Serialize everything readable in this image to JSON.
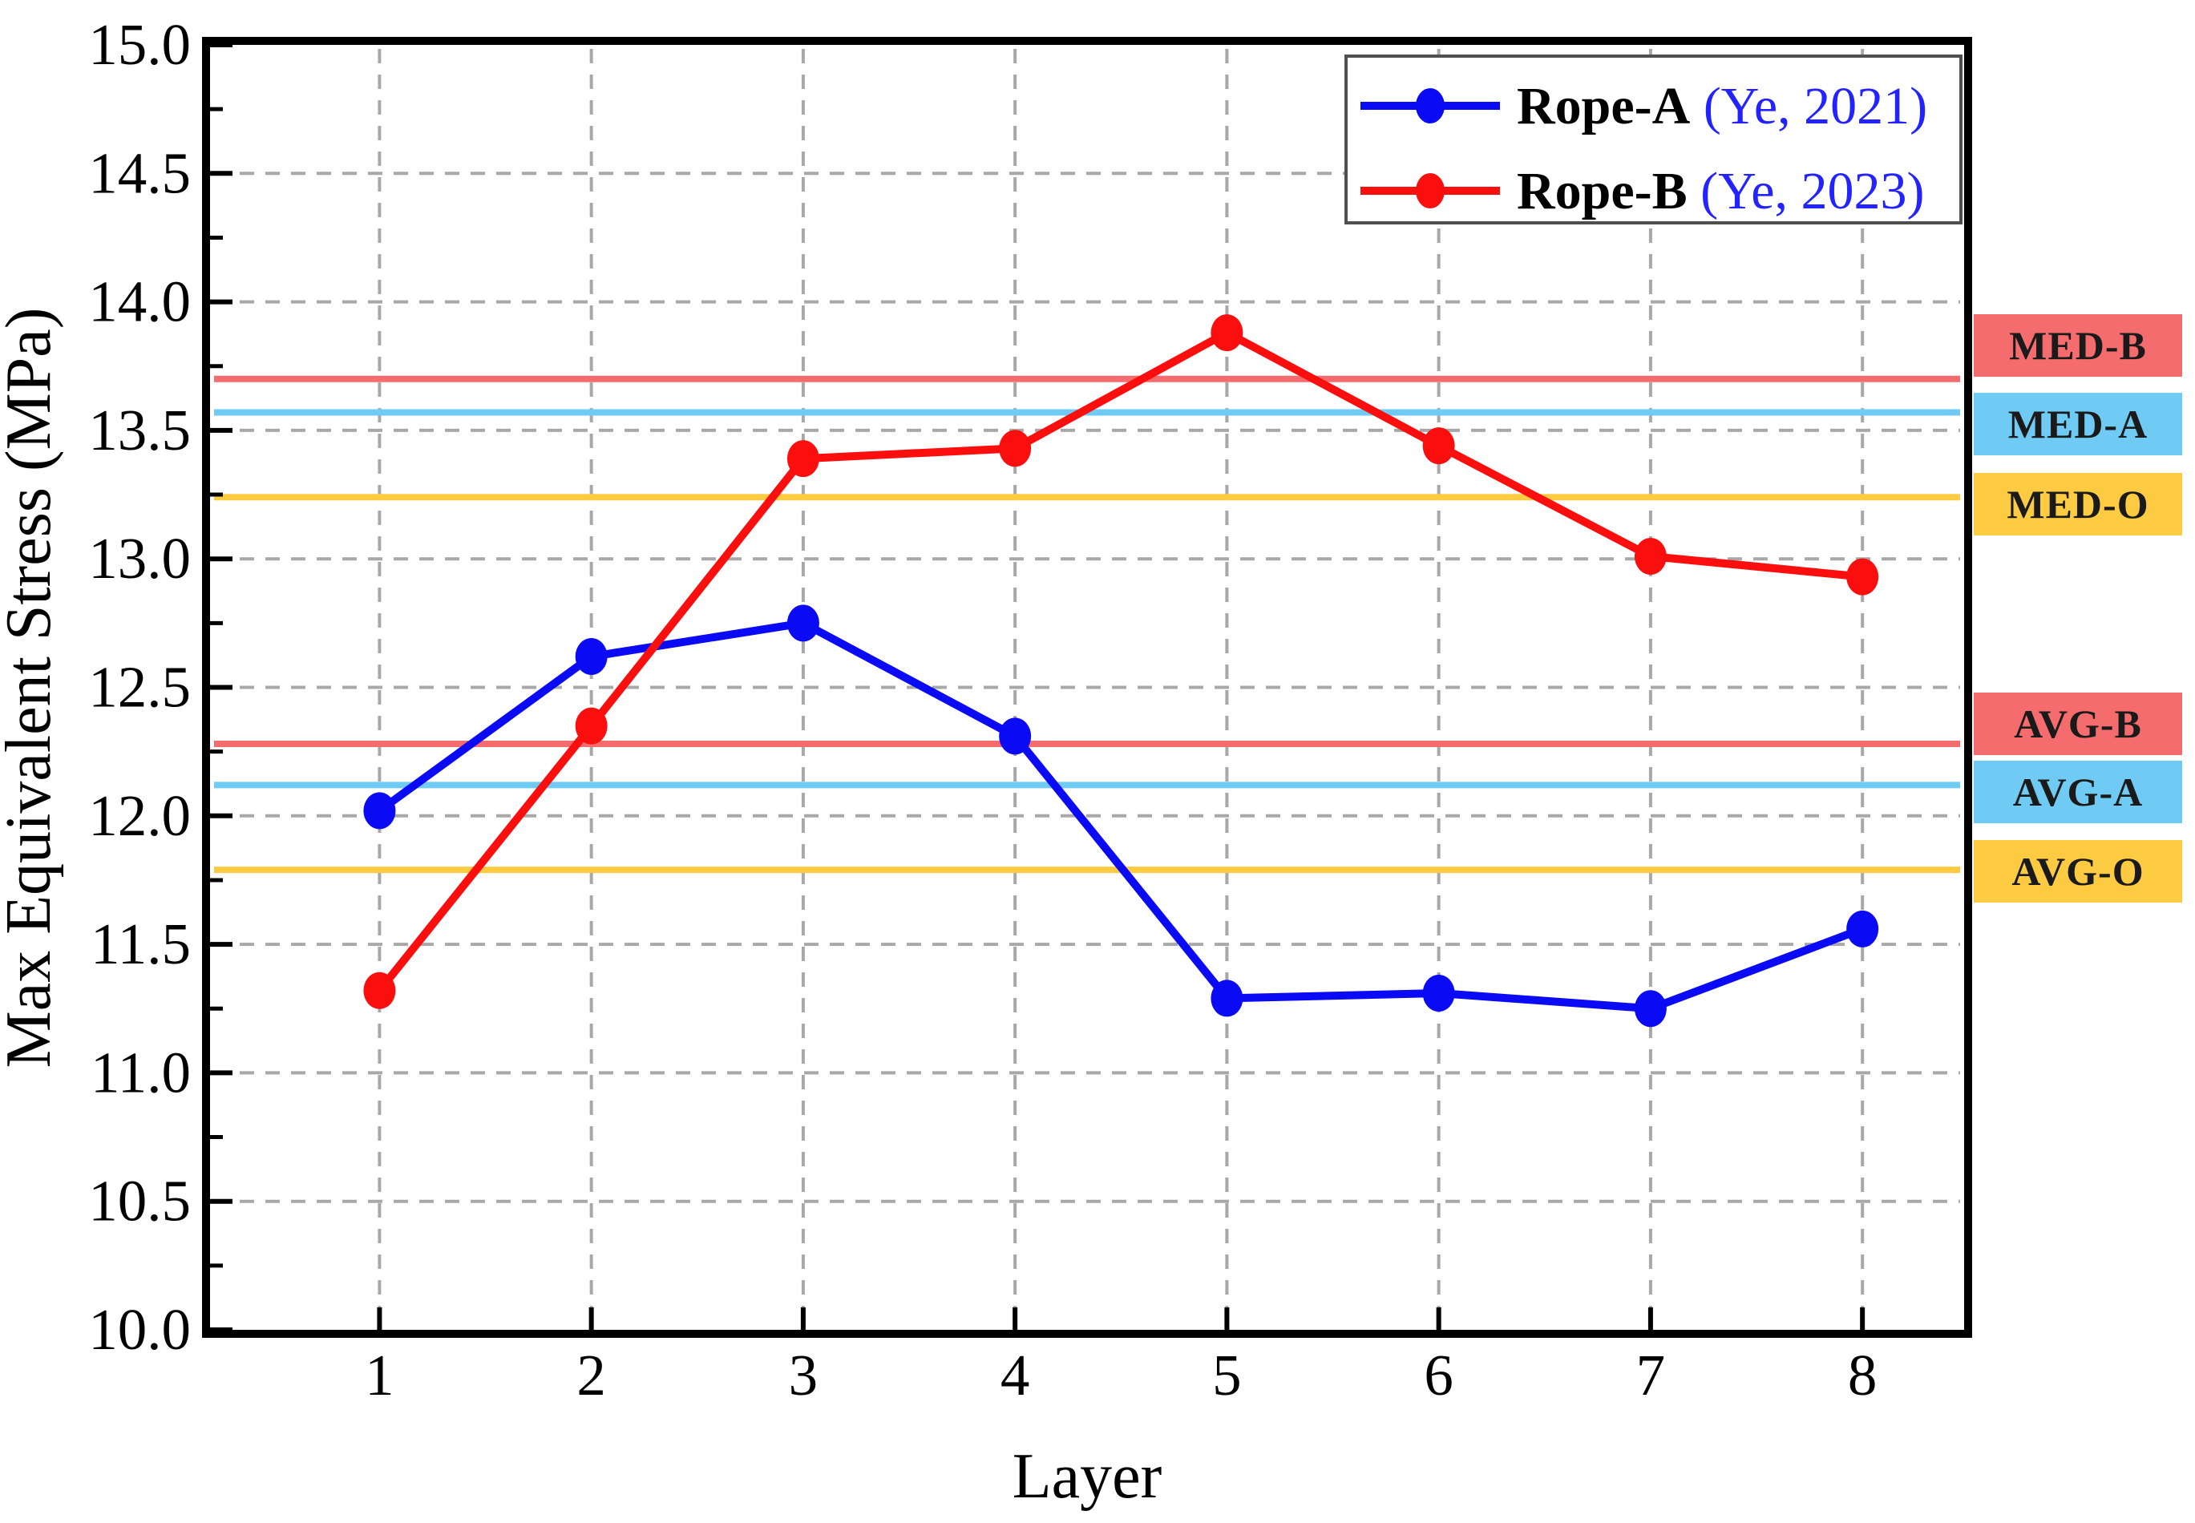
{
  "chart_data": {
    "type": "line",
    "title": "",
    "xlabel": "Layer",
    "ylabel": "Max Equivalent Stress (MPa)",
    "xlim": [
      0.2,
      8.48
    ],
    "ylim": [
      10.0,
      15.0
    ],
    "grid": "dashed gray gridlines at every major tick, both axes",
    "legend_position": "top-right inside plot",
    "x": [
      1,
      2,
      3,
      4,
      5,
      6,
      7,
      8
    ],
    "x_tick_labels": [
      "1",
      "2",
      "3",
      "4",
      "5",
      "6",
      "7",
      "8"
    ],
    "y_tick_labels": [
      "10.0",
      "10.5",
      "11.0",
      "11.5",
      "12.0",
      "12.5",
      "13.0",
      "13.5",
      "14.0",
      "14.5",
      "15.0"
    ],
    "y_minor_tick_step": 0.25,
    "series": [
      {
        "name": "Rope-A",
        "cite": " (Ye, 2021)",
        "color": "#0a0af5",
        "marker": "filled-circle",
        "values": [
          12.02,
          12.62,
          12.75,
          12.31,
          11.29,
          11.31,
          11.25,
          11.56
        ]
      },
      {
        "name": "Rope-B",
        "cite": " (Ye, 2023)",
        "color": "#fb0e0e",
        "marker": "filled-circle",
        "values": [
          11.32,
          12.35,
          13.39,
          13.43,
          13.88,
          13.44,
          13.01,
          12.93
        ]
      }
    ],
    "reference_lines": [
      {
        "label": "MED-B",
        "value": 13.7,
        "color": "#f56c6e"
      },
      {
        "label": "MED-A",
        "value": 13.57,
        "color": "#6fcbf3"
      },
      {
        "label": "MED-O",
        "value": 13.24,
        "color": "#fccb41"
      },
      {
        "label": "AVG-B",
        "value": 12.28,
        "color": "#f56c6e"
      },
      {
        "label": "AVG-A",
        "value": 12.12,
        "color": "#6fcbf3"
      },
      {
        "label": "AVG-O",
        "value": 11.79,
        "color": "#fccb41"
      }
    ]
  }
}
